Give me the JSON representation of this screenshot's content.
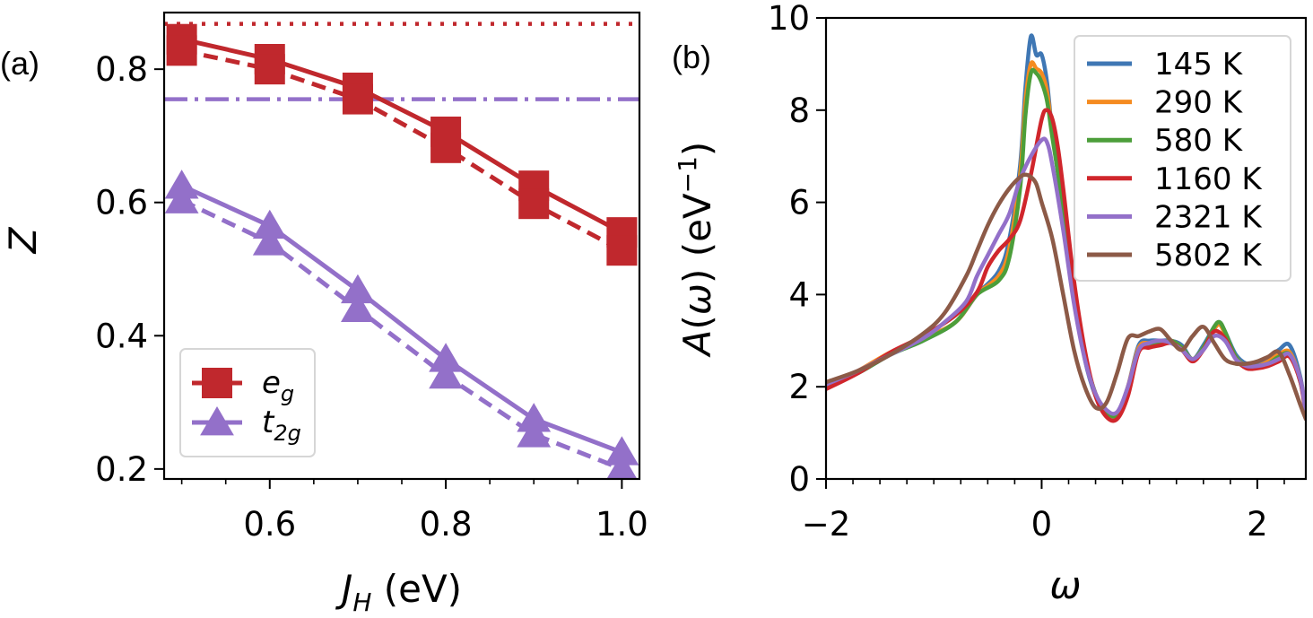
{
  "figure": {
    "panel_a_label": "(a)",
    "panel_b_label": "(b)"
  },
  "chart_data": [
    {
      "type": "line",
      "panel": "(a)",
      "xlabel": "J_H (eV)",
      "ylabel": "Z",
      "xlim": [
        0.48,
        1.02
      ],
      "ylim": [
        0.185,
        0.885
      ],
      "x_ticks": [
        0.6,
        0.8,
        1.0
      ],
      "x_tick_labels": [
        "0.6",
        "0.8",
        "1.0"
      ],
      "y_ticks": [
        0.2,
        0.4,
        0.6,
        0.8
      ],
      "y_tick_labels": [
        "0.2",
        "0.4",
        "0.6",
        "0.8"
      ],
      "x": [
        0.5,
        0.6,
        0.7,
        0.8,
        0.9,
        1.0
      ],
      "series": [
        {
          "name": "e_g",
          "color": "#c0282d",
          "marker": "square",
          "line": "solid",
          "values": [
            0.845,
            0.815,
            0.772,
            0.706,
            0.625,
            0.555
          ]
        },
        {
          "name": "e_g (dashed)",
          "color": "#c0282d",
          "marker": "square",
          "line": "dashed",
          "values": [
            0.828,
            0.8,
            0.755,
            0.682,
            0.598,
            0.528
          ]
        },
        {
          "name": "t_2g",
          "color": "#9370c9",
          "marker": "triangle",
          "line": "solid",
          "values": [
            0.625,
            0.565,
            0.468,
            0.365,
            0.275,
            0.225
          ]
        },
        {
          "name": "t_2g (dashed)",
          "color": "#9370c9",
          "marker": "triangle",
          "line": "dashed",
          "values": [
            0.603,
            0.54,
            0.44,
            0.34,
            0.252,
            0.2
          ]
        }
      ],
      "reference_lines": [
        {
          "y": 0.868,
          "color": "#c0282d",
          "style": "dotted"
        },
        {
          "y": 0.755,
          "color": "#9370c9",
          "style": "dashdot"
        }
      ],
      "legend": {
        "position": "lower-left",
        "entries": [
          {
            "base": "e",
            "sub": "g",
            "color": "#c0282d",
            "marker": "square"
          },
          {
            "base": "t",
            "sub": "2g",
            "color": "#9370c9",
            "marker": "triangle"
          }
        ]
      }
    },
    {
      "type": "line",
      "panel": "(b)",
      "xlabel": "ω",
      "ylabel": "A(ω) (eV⁻¹)",
      "xlim": [
        -2.0,
        2.45
      ],
      "ylim": [
        0,
        10
      ],
      "x_ticks": [
        -2,
        0,
        2
      ],
      "x_tick_labels": [
        "−2",
        "0",
        "2"
      ],
      "y_ticks": [
        0,
        2,
        4,
        6,
        8,
        10
      ],
      "y_tick_labels": [
        "0",
        "2",
        "4",
        "6",
        "8",
        "10"
      ],
      "series": [
        {
          "name": "145 K",
          "color": "#3f77b4",
          "x": [
            -2.0,
            -1.7,
            -1.4,
            -1.1,
            -0.8,
            -0.6,
            -0.4,
            -0.3,
            -0.2,
            -0.15,
            -0.1,
            -0.05,
            0.0,
            0.05,
            0.1,
            0.2,
            0.3,
            0.4,
            0.5,
            0.6,
            0.7,
            0.8,
            0.9,
            1.0,
            1.1,
            1.2,
            1.3,
            1.4,
            1.5,
            1.6,
            1.65,
            1.7,
            1.8,
            1.9,
            2.0,
            2.1,
            2.2,
            2.3,
            2.4,
            2.45
          ],
          "y": [
            2.0,
            2.3,
            2.7,
            3.0,
            3.4,
            4.0,
            4.5,
            5.2,
            6.8,
            8.5,
            9.6,
            9.2,
            9.2,
            8.6,
            7.5,
            5.8,
            4.0,
            2.6,
            1.8,
            1.4,
            1.4,
            2.0,
            2.9,
            3.0,
            3.0,
            3.0,
            2.9,
            2.6,
            2.9,
            3.3,
            3.4,
            3.2,
            2.7,
            2.5,
            2.5,
            2.6,
            2.8,
            2.9,
            2.2,
            1.4
          ]
        },
        {
          "name": "290 K",
          "color": "#f58b20",
          "x": [
            -2.0,
            -1.7,
            -1.4,
            -1.1,
            -0.8,
            -0.6,
            -0.4,
            -0.3,
            -0.2,
            -0.15,
            -0.1,
            -0.05,
            0.0,
            0.05,
            0.1,
            0.2,
            0.3,
            0.4,
            0.5,
            0.6,
            0.7,
            0.8,
            0.9,
            1.0,
            1.1,
            1.2,
            1.3,
            1.4,
            1.5,
            1.6,
            1.65,
            1.7,
            1.8,
            1.9,
            2.0,
            2.1,
            2.2,
            2.3,
            2.4,
            2.45
          ],
          "y": [
            2.0,
            2.35,
            2.75,
            3.05,
            3.4,
            4.0,
            4.4,
            5.0,
            6.6,
            8.2,
            9.0,
            8.9,
            8.8,
            8.4,
            7.5,
            5.9,
            4.1,
            2.7,
            1.85,
            1.45,
            1.4,
            2.0,
            2.85,
            2.95,
            2.95,
            3.0,
            2.85,
            2.6,
            2.85,
            3.25,
            3.35,
            3.15,
            2.65,
            2.45,
            2.45,
            2.55,
            2.7,
            2.75,
            2.15,
            1.4
          ]
        },
        {
          "name": "580 K",
          "color": "#4c9e3a",
          "x": [
            -2.0,
            -1.7,
            -1.4,
            -1.1,
            -0.8,
            -0.6,
            -0.4,
            -0.3,
            -0.2,
            -0.15,
            -0.1,
            -0.05,
            0.0,
            0.05,
            0.1,
            0.2,
            0.3,
            0.4,
            0.5,
            0.6,
            0.7,
            0.8,
            0.9,
            1.0,
            1.1,
            1.2,
            1.3,
            1.4,
            1.5,
            1.6,
            1.65,
            1.7,
            1.8,
            1.9,
            2.0,
            2.1,
            2.2,
            2.3,
            2.4,
            2.45
          ],
          "y": [
            2.0,
            2.3,
            2.7,
            3.0,
            3.4,
            4.0,
            4.3,
            4.8,
            6.3,
            7.9,
            8.8,
            8.8,
            8.6,
            8.2,
            7.4,
            5.9,
            4.1,
            2.7,
            1.85,
            1.45,
            1.4,
            1.95,
            2.8,
            2.9,
            2.95,
            3.0,
            2.85,
            2.6,
            2.85,
            3.3,
            3.4,
            3.2,
            2.65,
            2.45,
            2.45,
            2.5,
            2.65,
            2.7,
            2.1,
            1.4
          ]
        },
        {
          "name": "1160 K",
          "color": "#d0262c",
          "x": [
            -2.0,
            -1.7,
            -1.4,
            -1.1,
            -0.8,
            -0.6,
            -0.5,
            -0.4,
            -0.3,
            -0.2,
            -0.1,
            0.0,
            0.05,
            0.1,
            0.15,
            0.2,
            0.3,
            0.4,
            0.5,
            0.6,
            0.7,
            0.8,
            0.9,
            1.0,
            1.1,
            1.2,
            1.3,
            1.4,
            1.5,
            1.6,
            1.7,
            1.8,
            1.9,
            2.0,
            2.1,
            2.2,
            2.3,
            2.4,
            2.45
          ],
          "y": [
            1.95,
            2.3,
            2.75,
            3.1,
            3.55,
            4.05,
            4.6,
            4.95,
            5.2,
            5.6,
            6.6,
            7.8,
            8.0,
            7.8,
            7.2,
            6.3,
            4.3,
            2.8,
            1.8,
            1.35,
            1.3,
            1.8,
            2.75,
            2.85,
            2.9,
            2.95,
            2.8,
            2.55,
            2.8,
            3.2,
            3.05,
            2.6,
            2.4,
            2.4,
            2.45,
            2.55,
            2.65,
            2.1,
            1.35
          ]
        },
        {
          "name": "2321 K",
          "color": "#9370c9",
          "x": [
            -2.0,
            -1.7,
            -1.4,
            -1.1,
            -0.9,
            -0.7,
            -0.6,
            -0.5,
            -0.4,
            -0.3,
            -0.2,
            -0.1,
            0.0,
            0.05,
            0.1,
            0.2,
            0.3,
            0.4,
            0.5,
            0.6,
            0.7,
            0.8,
            0.9,
            1.0,
            1.1,
            1.2,
            1.3,
            1.4,
            1.5,
            1.6,
            1.7,
            1.8,
            1.9,
            2.0,
            2.1,
            2.2,
            2.3,
            2.4,
            2.45
          ],
          "y": [
            2.05,
            2.35,
            2.7,
            3.05,
            3.4,
            3.85,
            4.4,
            4.85,
            5.3,
            5.75,
            6.5,
            7.0,
            7.35,
            7.3,
            6.8,
            5.4,
            3.8,
            2.6,
            1.85,
            1.5,
            1.45,
            2.0,
            2.8,
            2.95,
            3.0,
            2.95,
            2.8,
            2.6,
            2.8,
            3.1,
            3.0,
            2.6,
            2.45,
            2.45,
            2.5,
            2.6,
            2.7,
            2.15,
            1.4
          ]
        },
        {
          "name": "5802 K",
          "color": "#8c5a47",
          "x": [
            -2.0,
            -1.7,
            -1.4,
            -1.1,
            -0.9,
            -0.7,
            -0.6,
            -0.5,
            -0.4,
            -0.3,
            -0.2,
            -0.15,
            -0.1,
            -0.05,
            0.0,
            0.1,
            0.2,
            0.3,
            0.4,
            0.5,
            0.6,
            0.7,
            0.8,
            0.9,
            1.0,
            1.1,
            1.2,
            1.3,
            1.4,
            1.5,
            1.6,
            1.7,
            1.8,
            1.9,
            2.0,
            2.1,
            2.2,
            2.3,
            2.4,
            2.45
          ],
          "y": [
            2.1,
            2.35,
            2.7,
            3.15,
            3.6,
            4.4,
            4.95,
            5.5,
            5.95,
            6.3,
            6.55,
            6.6,
            6.55,
            6.4,
            6.0,
            5.2,
            4.0,
            2.8,
            2.0,
            1.55,
            1.65,
            2.3,
            3.05,
            3.1,
            3.2,
            3.25,
            3.0,
            2.8,
            3.1,
            3.3,
            2.95,
            2.6,
            2.5,
            2.5,
            2.55,
            2.65,
            2.75,
            2.25,
            1.6,
            1.3
          ]
        }
      ],
      "legend": {
        "position": "top-right",
        "entries": [
          "145 K",
          "290 K",
          "580 K",
          "1160 K",
          "2321 K",
          "5802 K"
        ]
      }
    }
  ]
}
